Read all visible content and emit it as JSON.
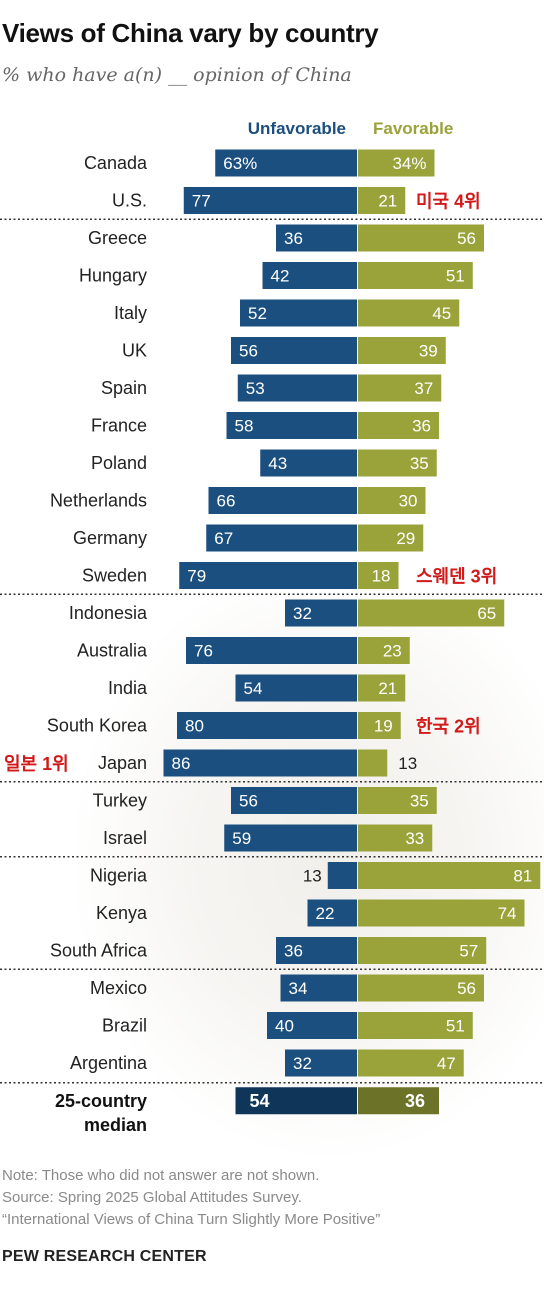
{
  "header": {
    "title": "Views of China vary by country",
    "subtitle": "% who have a(n) __ opinion of China"
  },
  "legend": {
    "unfavorable": "Unfavorable",
    "favorable": "Favorable"
  },
  "footer": {
    "note": "Note: Those who did not answer are not shown.",
    "source": "Source: Spring 2025 Global Attitudes Survey.",
    "report": "“International Views of China Turn Slightly More Positive”",
    "brand": "PEW RESEARCH CENTER"
  },
  "colors": {
    "unfavorable": "#1a4f7f",
    "favorable": "#9aa23a",
    "median_unfavorable": "#0f3559",
    "median_favorable": "#6c7227",
    "annotation": "#d11a1a"
  },
  "chart_data": {
    "type": "bar",
    "orientation": "horizontal-diverging",
    "series": [
      {
        "name": "Unfavorable",
        "direction": "left"
      },
      {
        "name": "Favorable",
        "direction": "right"
      }
    ],
    "rows": [
      {
        "country": "Canada",
        "unfavorable": 63,
        "favorable": 34,
        "unfavorable_label": "63%",
        "favorable_label": "34%"
      },
      {
        "country": "U.S.",
        "unfavorable": 77,
        "favorable": 21,
        "annotation_right": "미국 4위"
      },
      {
        "country": "Greece",
        "unfavorable": 36,
        "favorable": 56
      },
      {
        "country": "Hungary",
        "unfavorable": 42,
        "favorable": 51
      },
      {
        "country": "Italy",
        "unfavorable": 52,
        "favorable": 45
      },
      {
        "country": "UK",
        "unfavorable": 56,
        "favorable": 39
      },
      {
        "country": "Spain",
        "unfavorable": 53,
        "favorable": 37
      },
      {
        "country": "France",
        "unfavorable": 58,
        "favorable": 36
      },
      {
        "country": "Poland",
        "unfavorable": 43,
        "favorable": 35
      },
      {
        "country": "Netherlands",
        "unfavorable": 66,
        "favorable": 30
      },
      {
        "country": "Germany",
        "unfavorable": 67,
        "favorable": 29
      },
      {
        "country": "Sweden",
        "unfavorable": 79,
        "favorable": 18,
        "annotation_right": "스웨덴 3위"
      },
      {
        "country": "Indonesia",
        "unfavorable": 32,
        "favorable": 65
      },
      {
        "country": "Australia",
        "unfavorable": 76,
        "favorable": 23
      },
      {
        "country": "India",
        "unfavorable": 54,
        "favorable": 21
      },
      {
        "country": "South Korea",
        "unfavorable": 80,
        "favorable": 19,
        "annotation_right": "한국 2위"
      },
      {
        "country": "Japan",
        "unfavorable": 86,
        "favorable": 13,
        "annotation_left": "일본 1위"
      },
      {
        "country": "Turkey",
        "unfavorable": 56,
        "favorable": 35
      },
      {
        "country": "Israel",
        "unfavorable": 59,
        "favorable": 33
      },
      {
        "country": "Nigeria",
        "unfavorable": 13,
        "favorable": 81
      },
      {
        "country": "Kenya",
        "unfavorable": 22,
        "favorable": 74
      },
      {
        "country": "South Africa",
        "unfavorable": 36,
        "favorable": 57
      },
      {
        "country": "Mexico",
        "unfavorable": 34,
        "favorable": 56
      },
      {
        "country": "Brazil",
        "unfavorable": 40,
        "favorable": 51
      },
      {
        "country": "Argentina",
        "unfavorable": 32,
        "favorable": 47
      }
    ],
    "group_dividers_after": [
      "U.S.",
      "Sweden",
      "Japan",
      "Israel",
      "South Africa"
    ],
    "median": {
      "label_line1": "25-country",
      "label_line2": "median",
      "unfavorable": 54,
      "favorable": 36
    }
  }
}
